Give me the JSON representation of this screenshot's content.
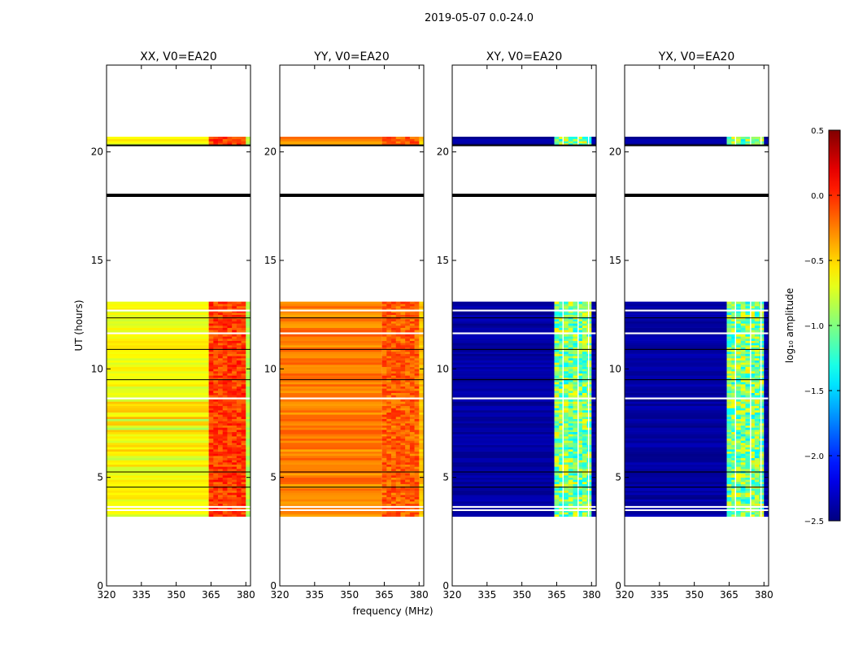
{
  "chart_data": {
    "type": "heatmap",
    "title": "2019-05-07 0.0-24.0",
    "xlabel": "frequency (MHz)",
    "ylabel": "UT (hours)",
    "xlim": [
      320,
      382
    ],
    "ylim": [
      0,
      24
    ],
    "x_ticks": [
      320,
      335,
      350,
      365,
      380
    ],
    "y_ticks": [
      0,
      5,
      10,
      15,
      20
    ],
    "data_time_range_hours": [
      3.2,
      20.7
    ],
    "data_gaps_hours": [
      [
        13.0,
        20.3
      ]
    ],
    "thick_lines_hours": [
      18.0,
      20.3
    ],
    "thin_lines_hours": [
      4.55,
      5.25,
      9.5,
      10.9,
      12.35
    ],
    "blank_rows_hours": [
      3.45,
      3.6,
      8.6,
      11.6,
      12.65
    ],
    "rfi_band_mhz": [
      364,
      380
    ],
    "panels": [
      {
        "title": "XX, V0=EA20",
        "base_value": -0.65,
        "band_value": -0.05
      },
      {
        "title": "YY, V0=EA20",
        "base_value": -0.25,
        "band_value": -0.15
      },
      {
        "title": "XY, V0=EA20",
        "base_value": -2.4,
        "band_value": -1.0
      },
      {
        "title": "YX, V0=EA20",
        "base_value": -2.4,
        "band_value": -1.0
      }
    ],
    "colorbar": {
      "label": "log₁₀ amplitude",
      "range": [
        -2.5,
        0.5
      ],
      "ticks": [
        0.5,
        0.0,
        -0.5,
        -1.0,
        -1.5,
        -2.0,
        -2.5
      ],
      "tick_labels": [
        "0.5",
        "0.0",
        "−0.5",
        "−1.0",
        "−1.5",
        "−2.0",
        "−2.5"
      ]
    }
  }
}
